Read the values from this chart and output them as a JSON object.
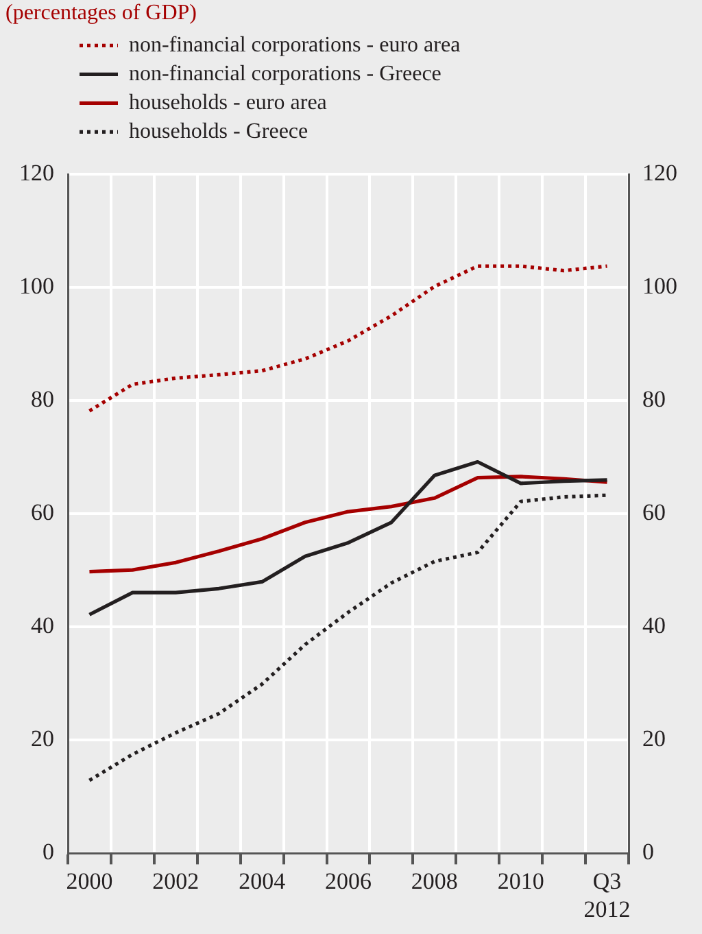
{
  "chart_data": {
    "type": "line",
    "subtitle": "(percentages of GDP)",
    "categories": [
      "2000",
      null,
      "2002",
      null,
      "2004",
      null,
      "2006",
      null,
      "2008",
      null,
      "2010",
      null,
      "Q3 2012"
    ],
    "series": [
      {
        "name": "non-financial corporations - euro area",
        "color": "#a50000",
        "line_style": "dotted",
        "values": [
          78.2,
          82.9,
          84.0,
          84.6,
          85.3,
          87.4,
          90.6,
          95.0,
          100.2,
          103.8,
          103.8,
          103.0,
          103.8
        ]
      },
      {
        "name": "non-financial corporations - Greece",
        "color": "#231f20",
        "line_style": "solid",
        "values": [
          42.2,
          46.1,
          46.1,
          46.8,
          48.0,
          52.5,
          54.9,
          58.5,
          66.8,
          69.2,
          65.4,
          65.8,
          66.0
        ]
      },
      {
        "name": "households - euro area",
        "color": "#a50000",
        "line_style": "solid",
        "values": [
          49.8,
          50.1,
          51.4,
          53.4,
          55.6,
          58.5,
          60.4,
          61.3,
          62.8,
          66.4,
          66.6,
          66.2,
          65.6
        ]
      },
      {
        "name": "households - Greece",
        "color": "#231f20",
        "line_style": "dotted",
        "values": [
          12.9,
          17.5,
          21.3,
          24.7,
          29.9,
          36.9,
          42.6,
          47.8,
          51.6,
          53.2,
          62.2,
          63.0,
          63.3
        ]
      }
    ],
    "ylim": [
      0,
      120
    ],
    "yticks": [
      0,
      20,
      40,
      60,
      80,
      100,
      120
    ],
    "y2lim": [
      0,
      120
    ],
    "y2ticks": [
      0,
      20,
      40,
      60,
      80,
      100,
      120
    ],
    "grid": true,
    "legend": "top left",
    "marker": "none"
  }
}
